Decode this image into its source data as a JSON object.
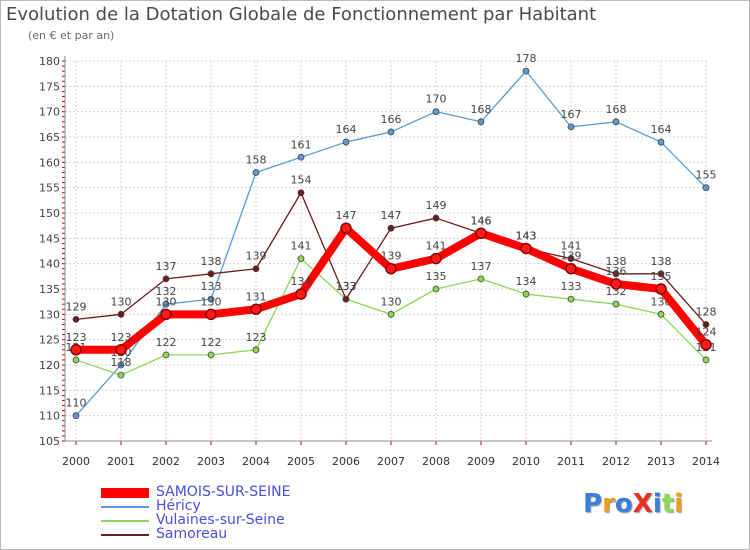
{
  "title": "Evolution de la Dotation Globale de Fonctionnement par Habitant",
  "subtitle": "(en € et par an)",
  "brand": "ProXiti",
  "chart_data": {
    "type": "line",
    "title": "Evolution de la Dotation Globale de Fonctionnement par Habitant",
    "ylabel": "(en € et par an)",
    "xlabel": "",
    "x": [
      "2000",
      "2001",
      "2002",
      "2003",
      "2004",
      "2005",
      "2006",
      "2007",
      "2008",
      "2009",
      "2010",
      "2011",
      "2012",
      "2013",
      "2014"
    ],
    "ylim": [
      105,
      180
    ],
    "yticks": [
      105,
      110,
      115,
      120,
      125,
      130,
      135,
      140,
      145,
      150,
      155,
      160,
      165,
      170,
      175,
      180
    ],
    "grid": true,
    "legend_position": "bottom-left",
    "series": [
      {
        "name": "SAMOIS-SUR-SEINE",
        "color": "#ff0000",
        "values": [
          123,
          123,
          130,
          130,
          131,
          134,
          147,
          139,
          141,
          146,
          143,
          139,
          136,
          135,
          124
        ]
      },
      {
        "name": "Héricy",
        "color": "#5b9bd5",
        "values": [
          110,
          120,
          132,
          133,
          158,
          161,
          164,
          166,
          170,
          168,
          178,
          167,
          168,
          164,
          155
        ]
      },
      {
        "name": "Vulaines-sur-Seine",
        "color": "#8ed654",
        "values": [
          121,
          118,
          122,
          122,
          123,
          141,
          133,
          130,
          135,
          137,
          134,
          133,
          132,
          130,
          121
        ]
      },
      {
        "name": "Samoreau",
        "color": "#6b1c1c",
        "values": [
          129,
          130,
          137,
          138,
          139,
          154,
          133,
          147,
          149,
          146,
          143,
          141,
          138,
          138,
          128
        ]
      }
    ]
  }
}
